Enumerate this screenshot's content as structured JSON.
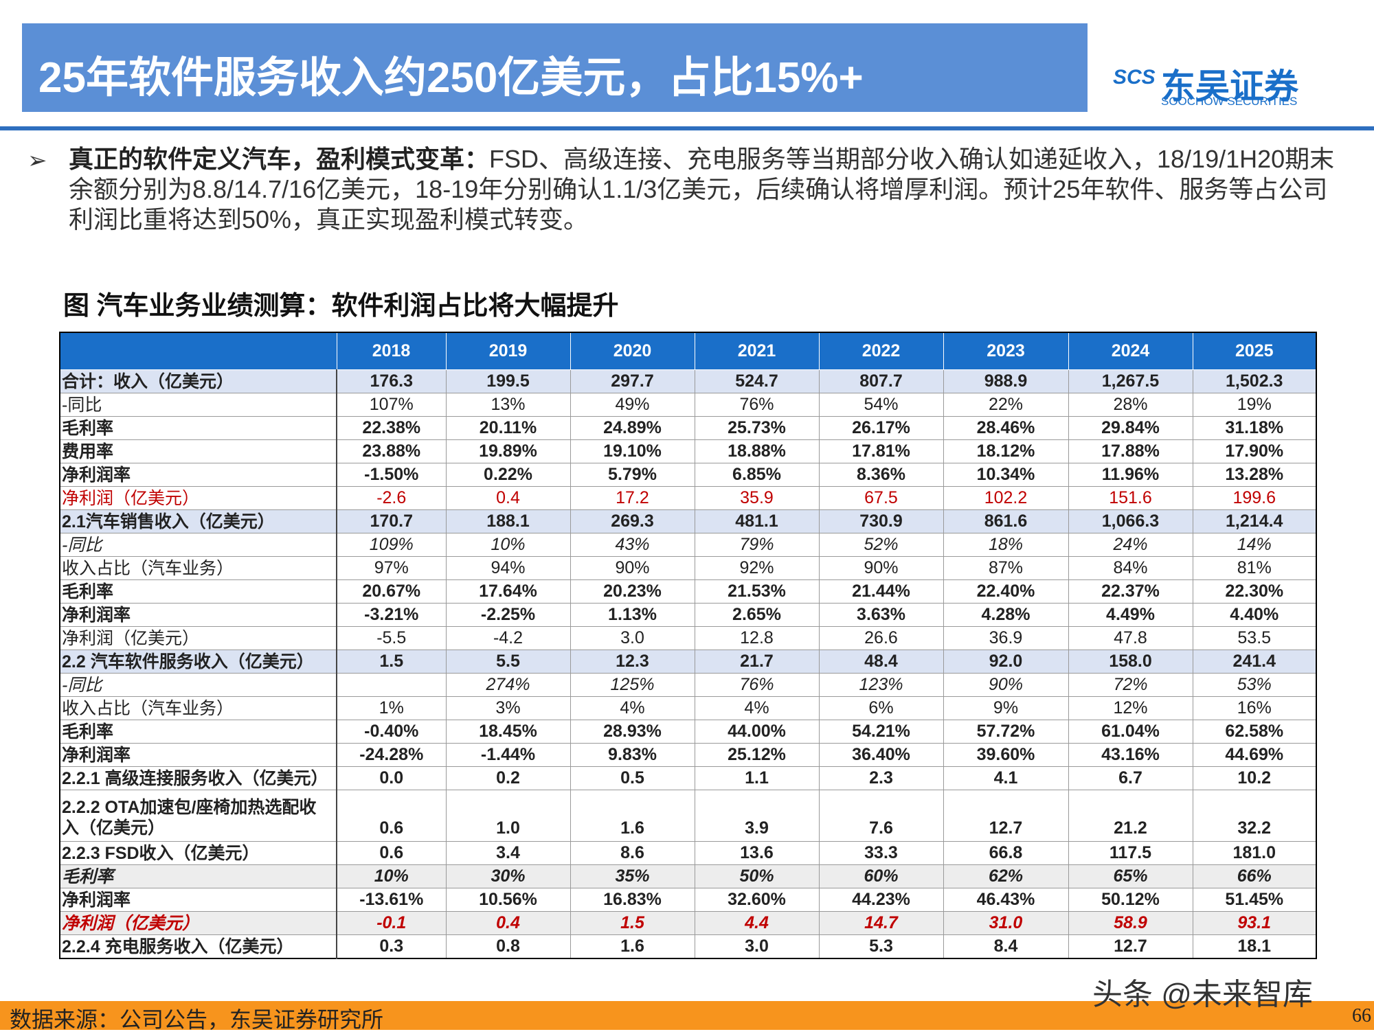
{
  "header": {
    "title": "25年软件服务收入约250亿美元，占比15%+",
    "logo_mark": "SCS",
    "logo_cn": "东吴证券",
    "logo_en": "SOOCHOW SECURITIES"
  },
  "bullet": {
    "lead": "真正的软件定义汽车，盈利模式变革：",
    "text": "FSD、高级连接、充电服务等当期部分收入确认如递延收入，18/19/1H20期末余额分别为8.8/14.7/16亿美元，18-19年分别确认1.1/3亿美元，后续确认将增厚利润。预计25年软件、服务等占公司利润比重将达到50%，真正实现盈利模式转变。"
  },
  "figure_title": "图  汽车业务业绩测算：软件利润占比将大幅提升",
  "table": {
    "columns": [
      "2018",
      "2019",
      "2020",
      "2021",
      "2022",
      "2023",
      "2024",
      "2025"
    ],
    "rows": [
      [
        "合计：收入（亿美元）",
        "176.3",
        "199.5",
        "297.7",
        "524.7",
        "807.7",
        "988.9",
        "1,267.5",
        "1,502.3"
      ],
      [
        "-同比",
        "107%",
        "13%",
        "49%",
        "76%",
        "54%",
        "22%",
        "28%",
        "19%"
      ],
      [
        "毛利率",
        "22.38%",
        "20.11%",
        "24.89%",
        "25.73%",
        "26.17%",
        "28.46%",
        "29.84%",
        "31.18%"
      ],
      [
        "费用率",
        "23.88%",
        "19.89%",
        "19.10%",
        "18.88%",
        "17.81%",
        "18.12%",
        "17.88%",
        "17.90%"
      ],
      [
        "净利润率",
        "-1.50%",
        "0.22%",
        "5.79%",
        "6.85%",
        "8.36%",
        "10.34%",
        "11.96%",
        "13.28%"
      ],
      [
        "净利润（亿美元）",
        "-2.6",
        "0.4",
        "17.2",
        "35.9",
        "67.5",
        "102.2",
        "151.6",
        "199.6"
      ],
      [
        "2.1汽车销售收入（亿美元）",
        "170.7",
        "188.1",
        "269.3",
        "481.1",
        "730.9",
        "861.6",
        "1,066.3",
        "1,214.4"
      ],
      [
        "-同比",
        "109%",
        "10%",
        "43%",
        "79%",
        "52%",
        "18%",
        "24%",
        "14%"
      ],
      [
        "收入占比（汽车业务）",
        "97%",
        "94%",
        "90%",
        "92%",
        "90%",
        "87%",
        "84%",
        "81%"
      ],
      [
        "毛利率",
        "20.67%",
        "17.64%",
        "20.23%",
        "21.53%",
        "21.44%",
        "22.40%",
        "22.37%",
        "22.30%"
      ],
      [
        "净利润率",
        "-3.21%",
        "-2.25%",
        "1.13%",
        "2.65%",
        "3.63%",
        "4.28%",
        "4.49%",
        "4.40%"
      ],
      [
        "净利润（亿美元）",
        "-5.5",
        "-4.2",
        "3.0",
        "12.8",
        "26.6",
        "36.9",
        "47.8",
        "53.5"
      ],
      [
        "2.2 汽车软件服务收入（亿美元）",
        "1.5",
        "5.5",
        "12.3",
        "21.7",
        "48.4",
        "92.0",
        "158.0",
        "241.4"
      ],
      [
        "-同比",
        null,
        "274%",
        "125%",
        "76%",
        "123%",
        "90%",
        "72%",
        "53%"
      ],
      [
        "收入占比（汽车业务）",
        "1%",
        "3%",
        "4%",
        "4%",
        "6%",
        "9%",
        "12%",
        "16%"
      ],
      [
        "毛利率",
        "-0.40%",
        "18.45%",
        "28.93%",
        "44.00%",
        "54.21%",
        "57.72%",
        "61.04%",
        "62.58%"
      ],
      [
        "净利润率",
        "-24.28%",
        "-1.44%",
        "9.83%",
        "25.12%",
        "36.40%",
        "39.60%",
        "43.16%",
        "44.69%"
      ],
      [
        "2.2.1 高级连接服务收入（亿美元）",
        "0.0",
        "0.2",
        "0.5",
        "1.1",
        "2.3",
        "4.1",
        "6.7",
        "10.2"
      ],
      [
        "2.2.2 OTA加速包/座椅加热选配收入（亿美元）",
        "0.6",
        "1.0",
        "1.6",
        "3.9",
        "7.6",
        "12.7",
        "21.2",
        "32.2"
      ],
      [
        "2.2.3 FSD收入（亿美元）",
        "0.6",
        "3.4",
        "8.6",
        "13.6",
        "33.3",
        "66.8",
        "117.5",
        "181.0"
      ],
      [
        "毛利率",
        "10%",
        "30%",
        "35%",
        "50%",
        "60%",
        "62%",
        "65%",
        "66%"
      ],
      [
        "净利润率",
        "-13.61%",
        "10.56%",
        "16.83%",
        "32.60%",
        "44.23%",
        "46.43%",
        "50.12%",
        "51.45%"
      ],
      [
        "净利润（亿美元）",
        "-0.1",
        "0.4",
        "1.5",
        "4.4",
        "14.7",
        "31.0",
        "58.9",
        "93.1"
      ],
      [
        "2.2.4 充电服务收入（亿美元）",
        "0.3",
        "0.8",
        "1.6",
        "3.0",
        "5.3",
        "8.4",
        "12.7",
        "18.1"
      ]
    ]
  },
  "footer": {
    "source": "数据来源：公司公告，东吴证券研究所",
    "watermark": "头条 @未来智库",
    "page_number": "66"
  }
}
